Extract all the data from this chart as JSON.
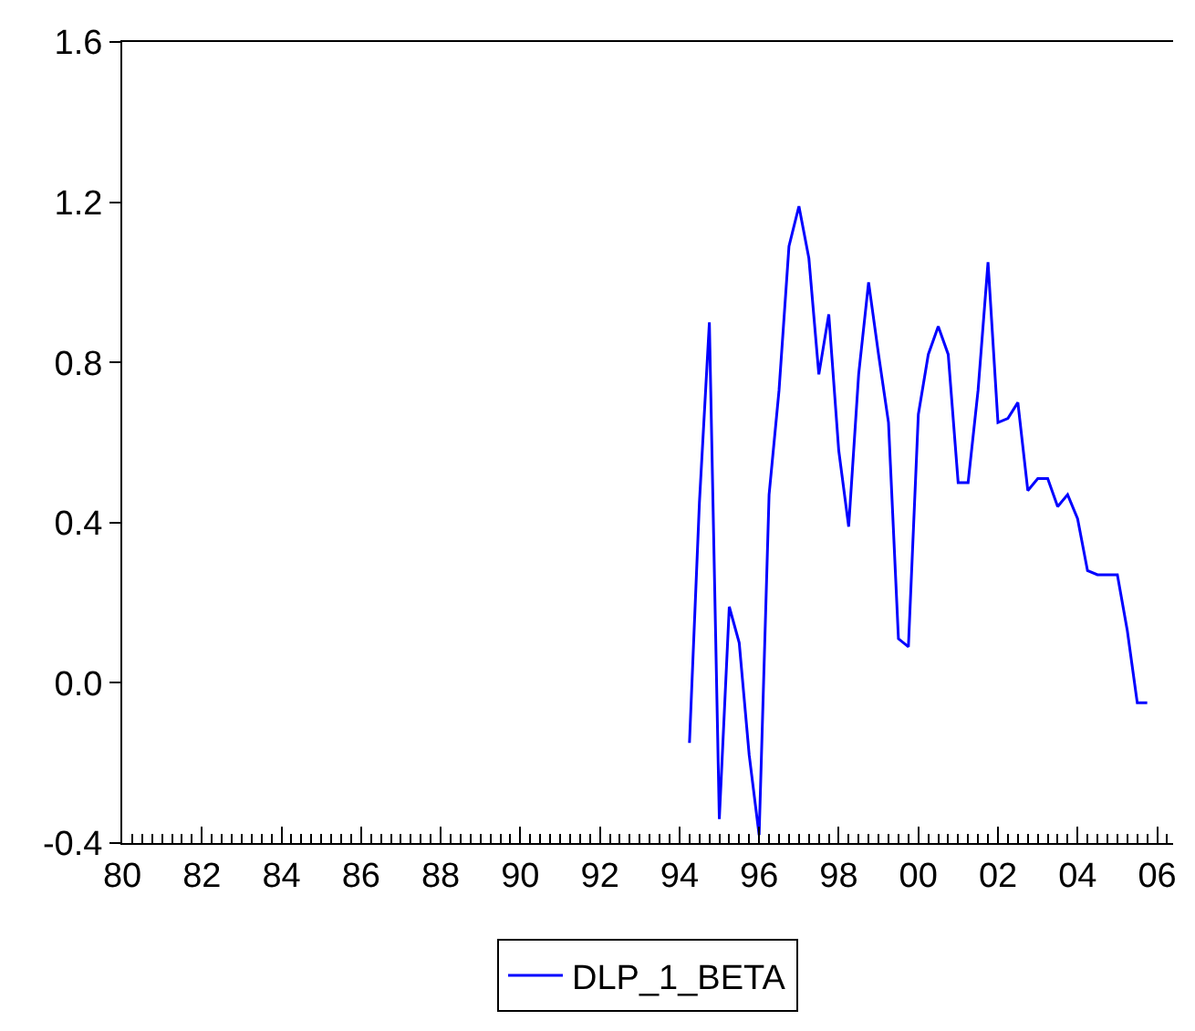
{
  "chart_data": {
    "type": "line",
    "x": [
      1994.25,
      1994.5,
      1994.75,
      1995.0,
      1995.25,
      1995.5,
      1995.75,
      1996.0,
      1996.25,
      1996.5,
      1996.75,
      1997.0,
      1997.25,
      1997.5,
      1997.75,
      1998.0,
      1998.25,
      1998.5,
      1998.75,
      1999.0,
      1999.25,
      1999.5,
      1999.75,
      2000.0,
      2000.25,
      2000.5,
      2000.75,
      2001.0,
      2001.25,
      2001.5,
      2001.75,
      2002.0,
      2002.25,
      2002.5,
      2002.75,
      2003.0,
      2003.25,
      2003.5,
      2003.75,
      2004.0,
      2004.25,
      2004.5,
      2004.75,
      2005.0,
      2005.25,
      2005.5,
      2005.75
    ],
    "series": [
      {
        "name": "DLP_1_BETA",
        "color": "#0000ff",
        "values": [
          -0.15,
          0.45,
          0.9,
          -0.34,
          0.19,
          0.1,
          -0.18,
          -0.38,
          0.47,
          0.73,
          1.09,
          1.19,
          1.06,
          0.77,
          0.92,
          0.58,
          0.39,
          0.77,
          1.0,
          0.82,
          0.65,
          0.11,
          0.09,
          0.67,
          0.82,
          0.89,
          0.82,
          0.5,
          0.5,
          0.73,
          1.05,
          0.65,
          0.66,
          0.7,
          0.48,
          0.51,
          0.51,
          0.44,
          0.47,
          0.41,
          0.28,
          0.27,
          0.27,
          0.27,
          0.13,
          -0.05,
          -0.05
        ]
      }
    ],
    "xlim": [
      1980,
      2006.4
    ],
    "xticks": [
      {
        "value": 1980,
        "label": "80"
      },
      {
        "value": 1982,
        "label": "82"
      },
      {
        "value": 1984,
        "label": "84"
      },
      {
        "value": 1986,
        "label": "86"
      },
      {
        "value": 1988,
        "label": "88"
      },
      {
        "value": 1990,
        "label": "90"
      },
      {
        "value": 1992,
        "label": "92"
      },
      {
        "value": 1994,
        "label": "94"
      },
      {
        "value": 1996,
        "label": "96"
      },
      {
        "value": 1998,
        "label": "98"
      },
      {
        "value": 2000,
        "label": "00"
      },
      {
        "value": 2002,
        "label": "02"
      },
      {
        "value": 2004,
        "label": "04"
      },
      {
        "value": 2006,
        "label": "06"
      }
    ],
    "ylim": [
      -0.4,
      1.6
    ],
    "yticks": [
      {
        "value": -0.4,
        "label": "-0.4"
      },
      {
        "value": 0,
        "label": "0.0"
      },
      {
        "value": 0.4,
        "label": "0.4"
      },
      {
        "value": 0.8,
        "label": "0.8"
      },
      {
        "value": 1.2,
        "label": "1.2"
      },
      {
        "value": 1.6,
        "label": "1.6"
      }
    ],
    "legend": "bottom",
    "marker": "none",
    "line_style": "solid"
  }
}
